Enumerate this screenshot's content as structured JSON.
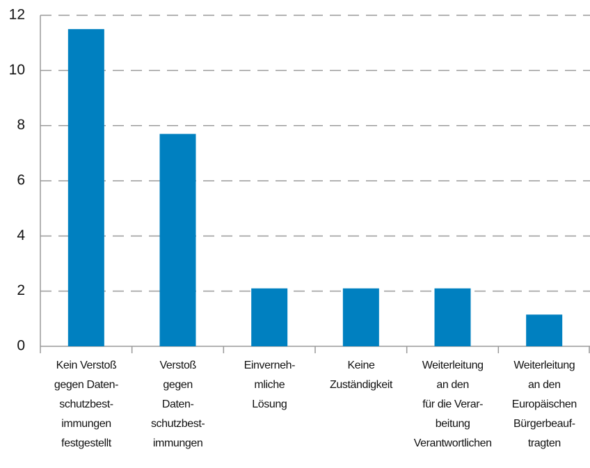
{
  "chart_data": {
    "type": "bar",
    "categories": [
      "Kein Verstoß\ngegen Daten-\nschutzbest-\nimmungen\nfestgestellt",
      "Verstoß\ngegen\nDaten-\nschutzbest-\nimmungen",
      "Einverneh-\nmliche\nLösung",
      "Keine\nZuständigkeit",
      "Weiterleitung\nan den\nfür die Verar-\nbeitung\nVerantwortlichen",
      "Weiterleitung\nan den\nEuropäischen\nBürgerbeauf-\ntragten"
    ],
    "values": [
      11.5,
      7.7,
      2.1,
      2.1,
      2.1,
      1.15
    ],
    "color": "#0080c0",
    "ylim": [
      0,
      12
    ],
    "yticks": [
      0,
      2,
      4,
      6,
      8,
      10,
      12
    ],
    "grid": true
  }
}
